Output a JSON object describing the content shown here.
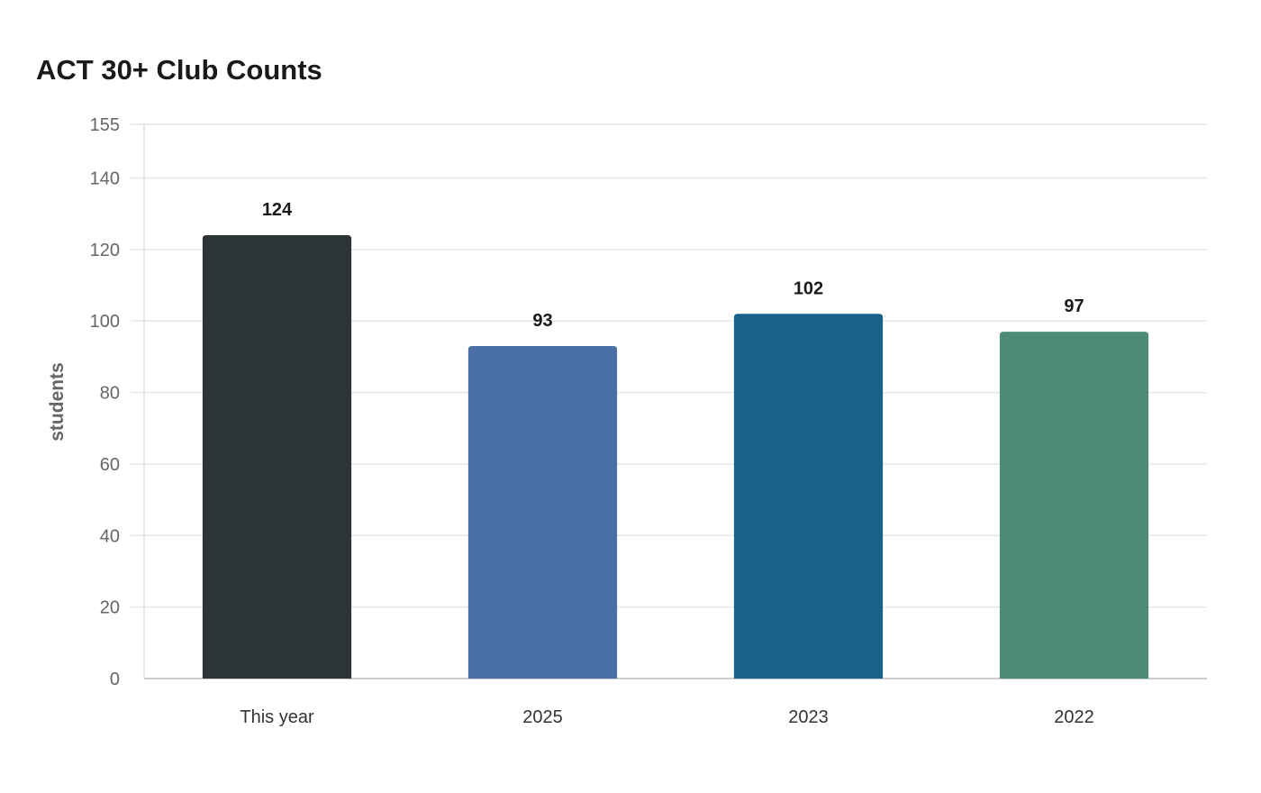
{
  "chart_data": {
    "type": "bar",
    "title": "ACT 30+ Club Counts",
    "xlabel": "",
    "ylabel": "students",
    "categories": [
      "This year",
      "2025",
      "2023",
      "2022"
    ],
    "values": [
      124,
      93,
      102,
      97
    ],
    "colors": [
      "#2d3436",
      "#4a6fa5",
      "#1a6189",
      "#4e8c7a"
    ],
    "yticks": [
      0,
      20,
      40,
      60,
      80,
      100,
      120,
      140,
      155
    ],
    "ylim": [
      0,
      155
    ],
    "grid": true,
    "legend": "none",
    "data_labels": true
  }
}
